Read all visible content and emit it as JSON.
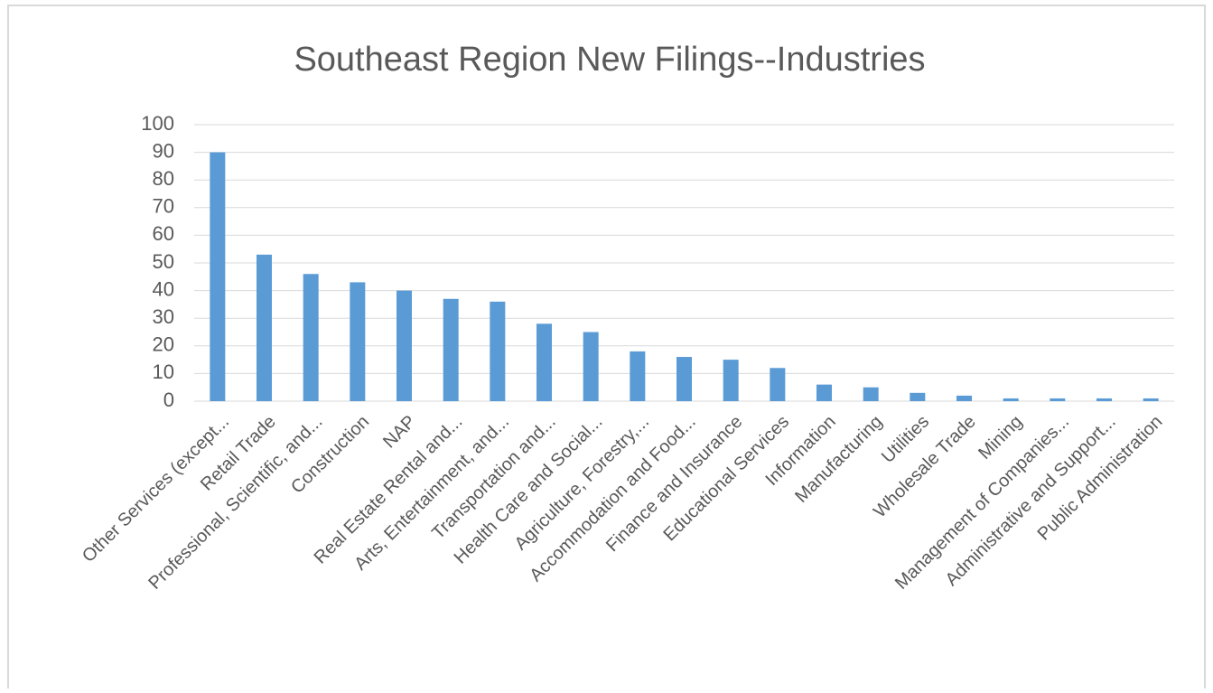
{
  "chart_data": {
    "type": "bar",
    "title": "Southeast Region New Filings--Industries",
    "categories": [
      "Other Services (except...",
      "Retail Trade",
      "Professional, Scientific, and...",
      "Construction",
      "NAP",
      "Real Estate Rental and...",
      "Arts, Entertainment, and...",
      "Transportation and...",
      "Health Care and Social...",
      "Agriculture, Forestry,...",
      "Accommodation and Food...",
      "Finance and Insurance",
      "Educational Services",
      "Information",
      "Manufacturing",
      "Utilities",
      "Wholesale Trade",
      "Mining",
      "Management of Companies...",
      "Administrative and Support...",
      "Public Administration"
    ],
    "values": [
      90,
      53,
      46,
      43,
      40,
      37,
      36,
      28,
      25,
      18,
      16,
      15,
      12,
      6,
      5,
      3,
      2,
      1,
      1,
      1,
      1
    ],
    "color": "#5b9bd5",
    "ylim": [
      0,
      100
    ],
    "yticks": [
      0,
      10,
      20,
      30,
      40,
      50,
      60,
      70,
      80,
      90,
      100
    ],
    "grid": true
  }
}
